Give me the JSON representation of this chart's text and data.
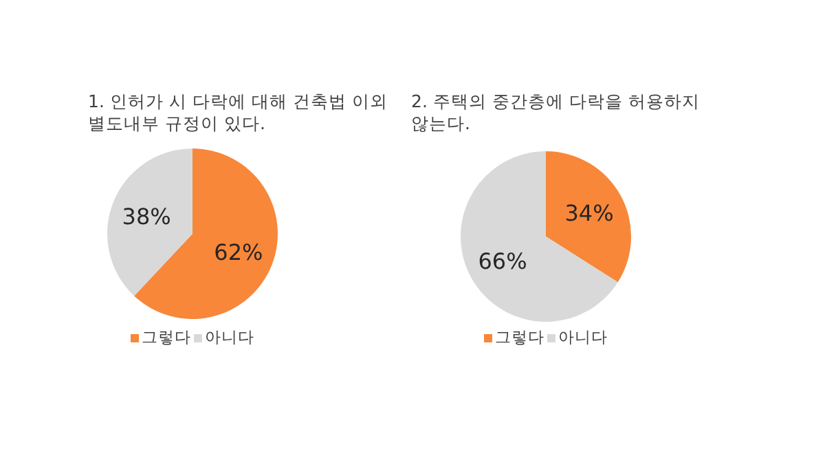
{
  "chart_data": [
    {
      "type": "pie",
      "title": "1. 인허가 시 다락에 대해 건축법 이외 별도내부 규정이 있다.",
      "categories": [
        "그렇다",
        "아니다"
      ],
      "values": [
        62,
        38
      ],
      "value_labels": [
        "62%",
        "38%"
      ],
      "colors": [
        "#f8873a",
        "#d9d9d9"
      ],
      "legend": "bottom"
    },
    {
      "type": "pie",
      "title": "2. 주택의 중간층에 다락을 허용하지 않는다.",
      "categories": [
        "그렇다",
        "아니다"
      ],
      "values": [
        34,
        66
      ],
      "value_labels": [
        "34%",
        "66%"
      ],
      "colors": [
        "#f8873a",
        "#d9d9d9"
      ],
      "legend": "bottom"
    }
  ]
}
